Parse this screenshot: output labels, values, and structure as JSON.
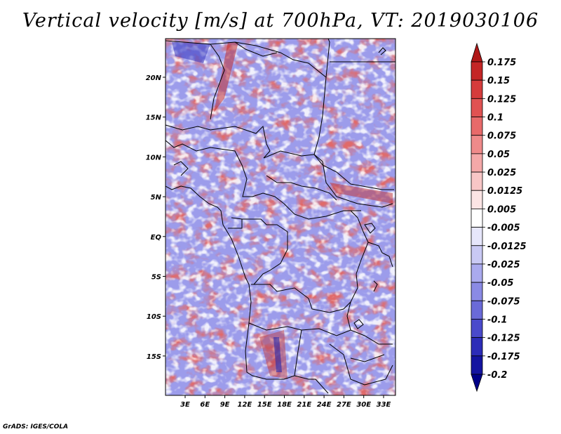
{
  "title": "Vertical velocity [m/s] at 700hPa, VT: 2019030106",
  "footer": "GrADS: IGES/COLA",
  "map": {
    "lon_ticks": [
      "3E",
      "6E",
      "9E",
      "12E",
      "15E",
      "18E",
      "21E",
      "24E",
      "27E",
      "30E",
      "33E"
    ],
    "lat_ticks": [
      "20N",
      "15N",
      "10N",
      "5N",
      "EQ",
      "5S",
      "10S",
      "15S"
    ],
    "lon_range": [
      0,
      34.5
    ],
    "lat_range": [
      -19,
      24.5
    ]
  },
  "colorbar": {
    "labels": [
      "0.175",
      "0.15",
      "0.125",
      "0.1",
      "0.075",
      "0.05",
      "0.025",
      "0.0125",
      "0.005",
      "-0.005",
      "-0.0125",
      "-0.025",
      "-0.05",
      "-0.075",
      "-0.1",
      "-0.125",
      "-0.175",
      "-0.2"
    ],
    "colors": [
      "#b01818",
      "#c42626",
      "#d53c3c",
      "#e05252",
      "#e86a6a",
      "#ef8a8a",
      "#f4a8a8",
      "#f8c6c6",
      "#fbe4e4",
      "#ffffff",
      "#e6e6fb",
      "#c9c9f4",
      "#aaaaee",
      "#8a8ae4",
      "#6a6ad8",
      "#4a4acb",
      "#2c2cb8",
      "#1414a0",
      "#000088"
    ]
  },
  "colors": {
    "border": "#000000",
    "coast": "#000000"
  }
}
